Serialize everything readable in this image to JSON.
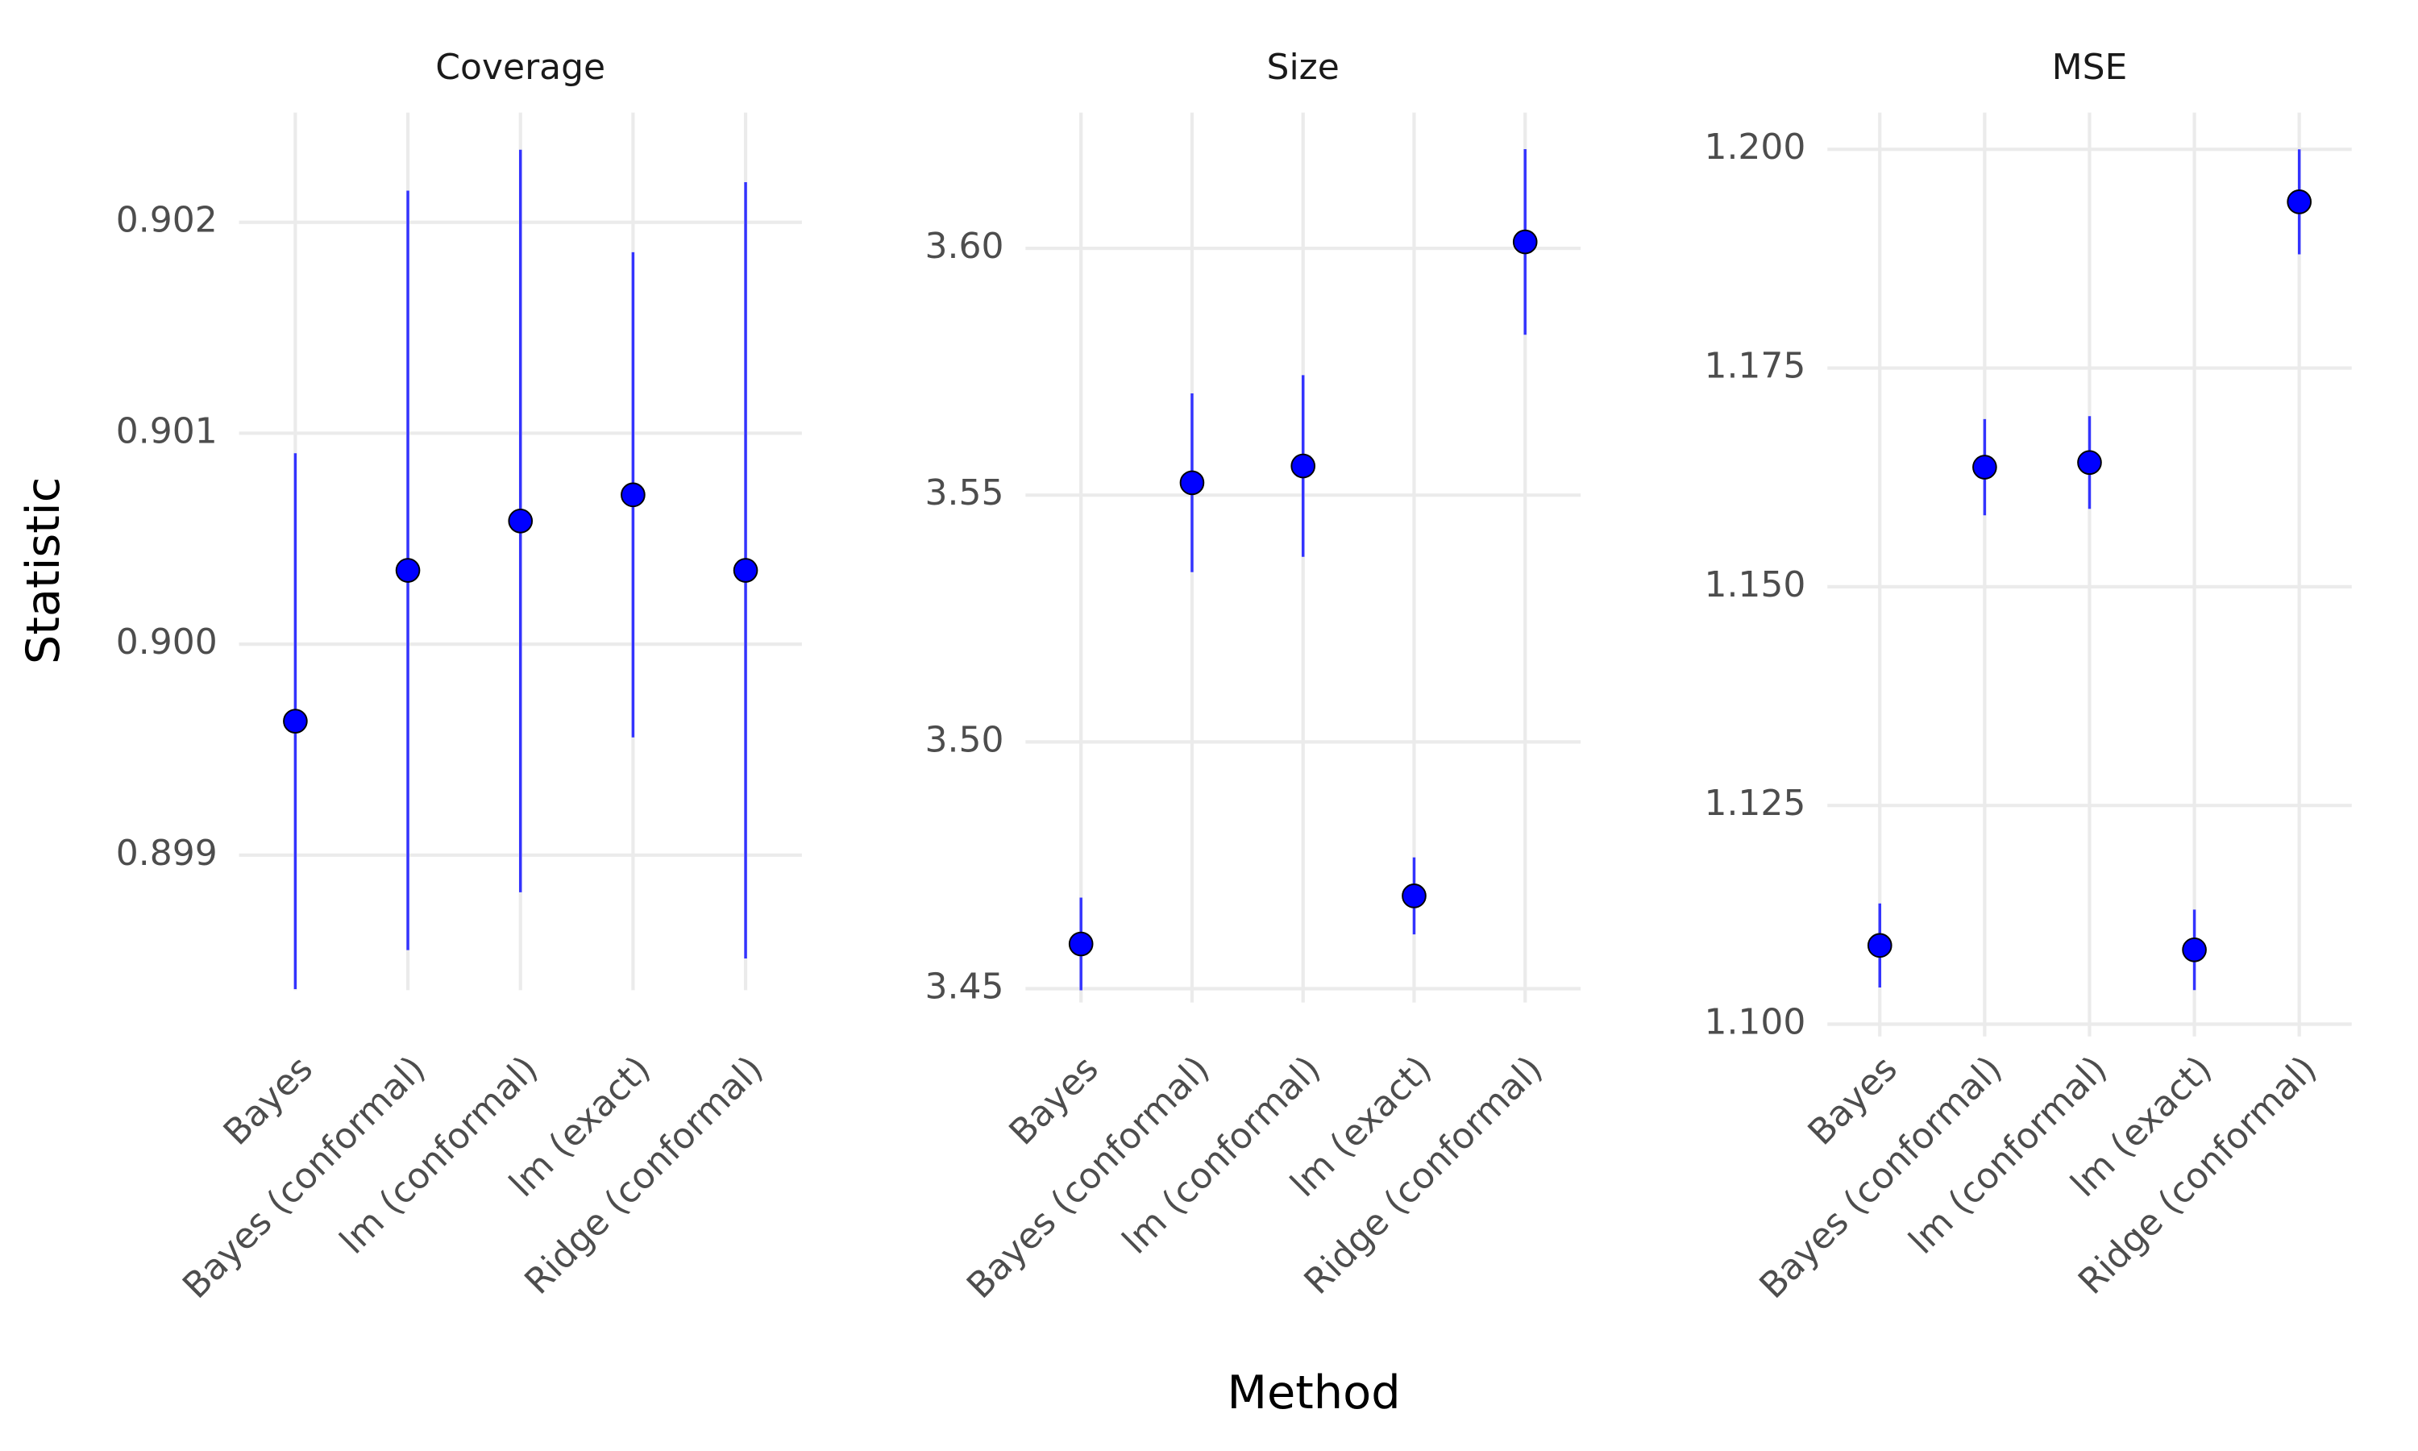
{
  "chart_data": [
    {
      "type": "pointrange",
      "title": "Coverage",
      "y_label": "Statistic",
      "categories": [
        "Bayes",
        "Bayes (conformal)",
        "lm (conformal)",
        "lm (exact)",
        "Ridge (conformal)"
      ],
      "values": [
        0.899635,
        0.90035,
        0.900584,
        0.900708,
        0.90035
      ],
      "errors": [
        0.00127,
        0.0018,
        0.00176,
        0.00115,
        0.00184
      ],
      "color": "#0000ff",
      "ylim": [
        0.89836,
        0.90252
      ],
      "yticks": [
        {
          "value": 0.899,
          "label": "0.899"
        },
        {
          "value": 0.9,
          "label": "0.900"
        },
        {
          "value": 0.901,
          "label": "0.901"
        },
        {
          "value": 0.902,
          "label": "0.902"
        }
      ],
      "grid": true
    },
    {
      "type": "pointrange",
      "title": "Size",
      "x_label": "Method",
      "categories": [
        "Bayes",
        "Bayes (conformal)",
        "lm (conformal)",
        "lm (exact)",
        "Ridge (conformal)"
      ],
      "values": [
        3.45906,
        3.5525,
        3.5559,
        3.4688,
        3.6013
      ],
      "errors": [
        0.0094,
        0.0181,
        0.0184,
        0.0078,
        0.0188
      ],
      "color": "#0000ff",
      "ylim": [
        3.4472,
        3.6275
      ],
      "yticks": [
        {
          "value": 3.45,
          "label": "3.45"
        },
        {
          "value": 3.5,
          "label": "3.50"
        },
        {
          "value": 3.55,
          "label": "3.55"
        },
        {
          "value": 3.6,
          "label": "3.60"
        }
      ],
      "grid": true
    },
    {
      "type": "pointrange",
      "title": "MSE",
      "categories": [
        "Bayes",
        "Bayes (conformal)",
        "lm (conformal)",
        "lm (exact)",
        "Ridge (conformal)"
      ],
      "values": [
        1.109,
        1.16367,
        1.1642,
        1.1085,
        1.194
      ],
      "errors": [
        0.0048,
        0.0055,
        0.0053,
        0.0046,
        0.006
      ],
      "color": "#0000ff",
      "ylim": [
        1.0986,
        1.2042
      ],
      "yticks": [
        {
          "value": 1.1,
          "label": "1.100"
        },
        {
          "value": 1.125,
          "label": "1.125"
        },
        {
          "value": 1.15,
          "label": "1.150"
        },
        {
          "value": 1.175,
          "label": "1.175"
        },
        {
          "value": 1.2,
          "label": "1.200"
        }
      ],
      "grid": true
    }
  ]
}
